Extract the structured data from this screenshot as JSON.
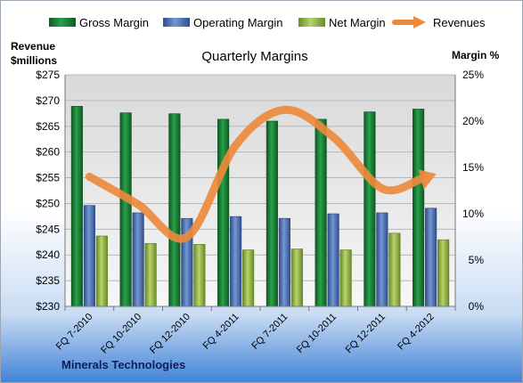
{
  "chart_data": {
    "type": "bar",
    "title": "Quarterly Margins",
    "footer": "Minerals Technologies",
    "ylabel_left_line1": "Revenue",
    "ylabel_left_line2": "$millions",
    "ylabel_right": "Margin %",
    "categories": [
      "FQ 7-2010",
      "FQ 10-2010",
      "FQ 12-2010",
      "FQ 4-2011",
      "FQ 7-2011",
      "FQ 10-2011",
      "FQ 12-2011",
      "FQ 4-2012"
    ],
    "ylim_left": [
      230,
      275
    ],
    "yticks_left": [
      "$230",
      "$235",
      "$240",
      "$245",
      "$250",
      "$255",
      "$260",
      "$265",
      "$270",
      "$275"
    ],
    "ylim_right": [
      0,
      25
    ],
    "yticks_right": [
      "0%",
      "5%",
      "10%",
      "15%",
      "20%",
      "25%"
    ],
    "grid": true,
    "legend_position": "top",
    "series": [
      {
        "name": "Gross Margin",
        "kind": "bar",
        "axis": "right",
        "color": "#1f8a3a",
        "values": [
          21.6,
          20.9,
          20.8,
          20.2,
          20.0,
          20.2,
          21.0,
          21.3
        ]
      },
      {
        "name": "Operating Margin",
        "kind": "bar",
        "axis": "right",
        "color": "#4a6fb0",
        "values": [
          10.9,
          10.1,
          9.5,
          9.7,
          9.5,
          10.0,
          10.1,
          10.6
        ]
      },
      {
        "name": "Net Margin",
        "kind": "bar",
        "axis": "right",
        "color": "#93b545",
        "values": [
          7.6,
          6.8,
          6.7,
          6.1,
          6.2,
          6.1,
          7.9,
          7.2
        ]
      },
      {
        "name": "Revenues",
        "kind": "line",
        "axis": "left",
        "color": "#ec8a3c",
        "values": [
          255.2,
          249.8,
          243.5,
          261.3,
          268.2,
          262.9,
          252.9,
          255.4
        ]
      }
    ]
  }
}
